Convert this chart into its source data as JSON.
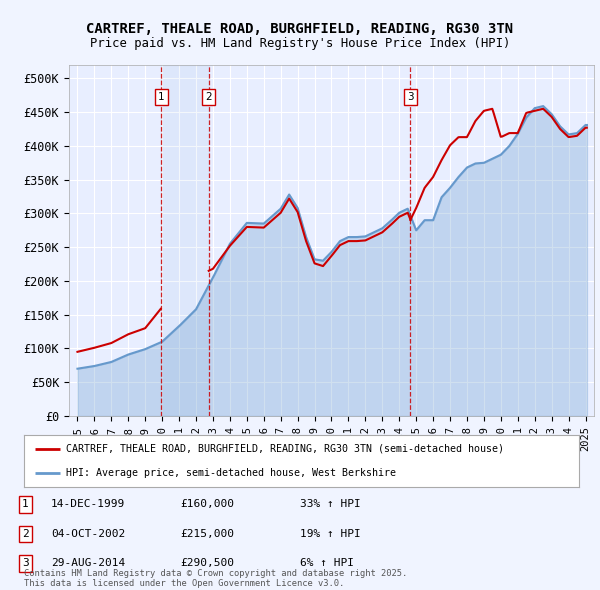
{
  "title1": "CARTREF, THEALE ROAD, BURGHFIELD, READING, RG30 3TN",
  "title2": "Price paid vs. HM Land Registry's House Price Index (HPI)",
  "xlim_start": 1994.5,
  "xlim_end": 2025.5,
  "ylim_min": 0,
  "ylim_max": 520000,
  "yticks": [
    0,
    50000,
    100000,
    150000,
    200000,
    250000,
    300000,
    350000,
    400000,
    450000,
    500000
  ],
  "ytick_labels": [
    "£0",
    "£50K",
    "£100K",
    "£150K",
    "£200K",
    "£250K",
    "£300K",
    "£350K",
    "£400K",
    "£450K",
    "£500K"
  ],
  "background_color": "#f0f4ff",
  "plot_bg": "#e8eeff",
  "grid_color": "#ffffff",
  "red_color": "#cc0000",
  "blue_color": "#6699cc",
  "sale_dates": [
    1999.96,
    2002.75,
    2014.66
  ],
  "sale_prices": [
    160000,
    215000,
    290500
  ],
  "sale_labels": [
    "1",
    "2",
    "3"
  ],
  "legend_label_red": "CARTREF, THEALE ROAD, BURGHFIELD, READING, RG30 3TN (semi-detached house)",
  "legend_label_blue": "HPI: Average price, semi-detached house, West Berkshire",
  "table_data": [
    [
      "1",
      "14-DEC-1999",
      "£160,000",
      "33% ↑ HPI"
    ],
    [
      "2",
      "04-OCT-2002",
      "£215,000",
      "19% ↑ HPI"
    ],
    [
      "3",
      "29-AUG-2014",
      "£290,500",
      "6% ↑ HPI"
    ]
  ],
  "footnote": "Contains HM Land Registry data © Crown copyright and database right 2025.\nThis data is licensed under the Open Government Licence v3.0."
}
